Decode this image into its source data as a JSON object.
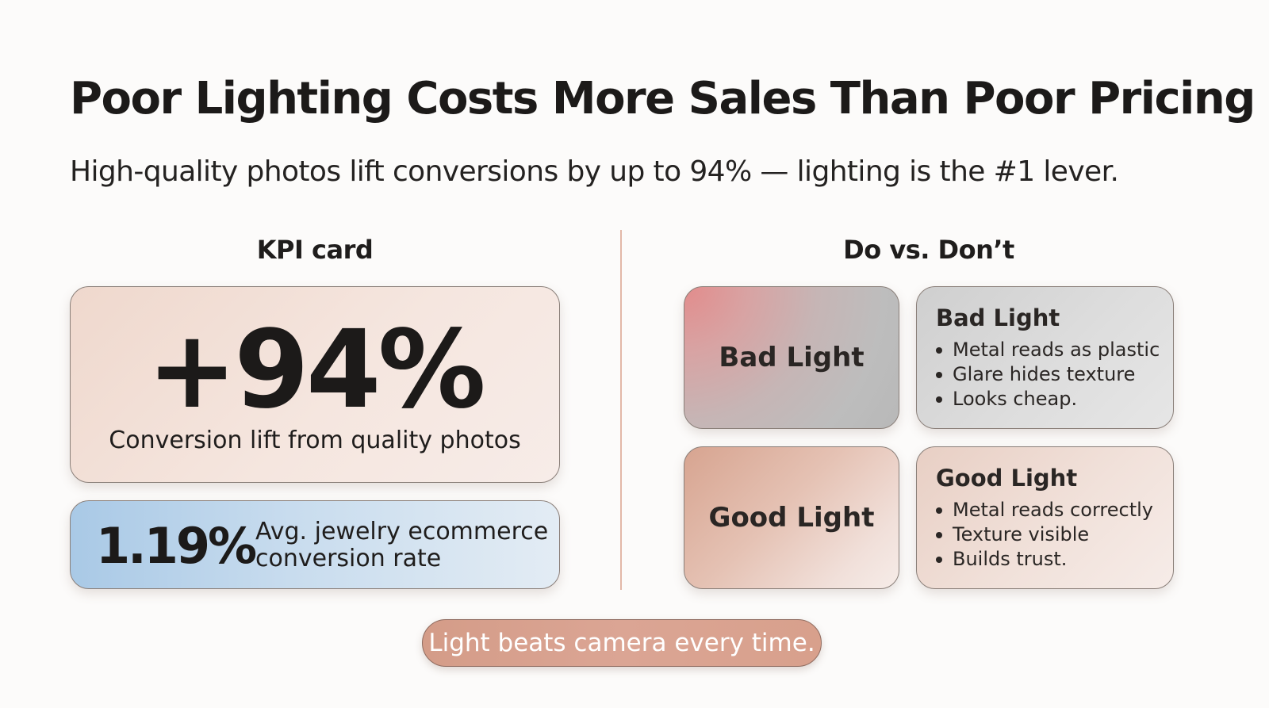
{
  "title": "Poor Lighting Costs More Sales Than Poor Pricing",
  "subtitle": "High-quality photos lift conversions by up to 94% — lighting is the #1 lever.",
  "kpi": {
    "heading": "KPI card",
    "main_value": "+94%",
    "main_caption": "Conversion lift from quality photos",
    "secondary_value": "1.19%",
    "secondary_label": "Avg. jewelry ecommerce conversion rate"
  },
  "do_dont": {
    "heading": "Do vs. Don’t",
    "bad": {
      "tile_label": "Bad Light",
      "title": "Bad Light",
      "items": [
        "Metal reads as plastic",
        "Glare hides texture",
        "Looks cheap."
      ]
    },
    "good": {
      "tile_label": "Good Light",
      "title": "Good Light",
      "items": [
        "Metal reads correctly",
        "Texture visible",
        "Builds trust."
      ]
    }
  },
  "tagline": "Light beats camera every time.",
  "colors": {
    "accent": "#d8a08c",
    "divider": "#e2b8a8",
    "kpi_blue": "#a9c9e6",
    "bad_red": "#e28c8c"
  }
}
